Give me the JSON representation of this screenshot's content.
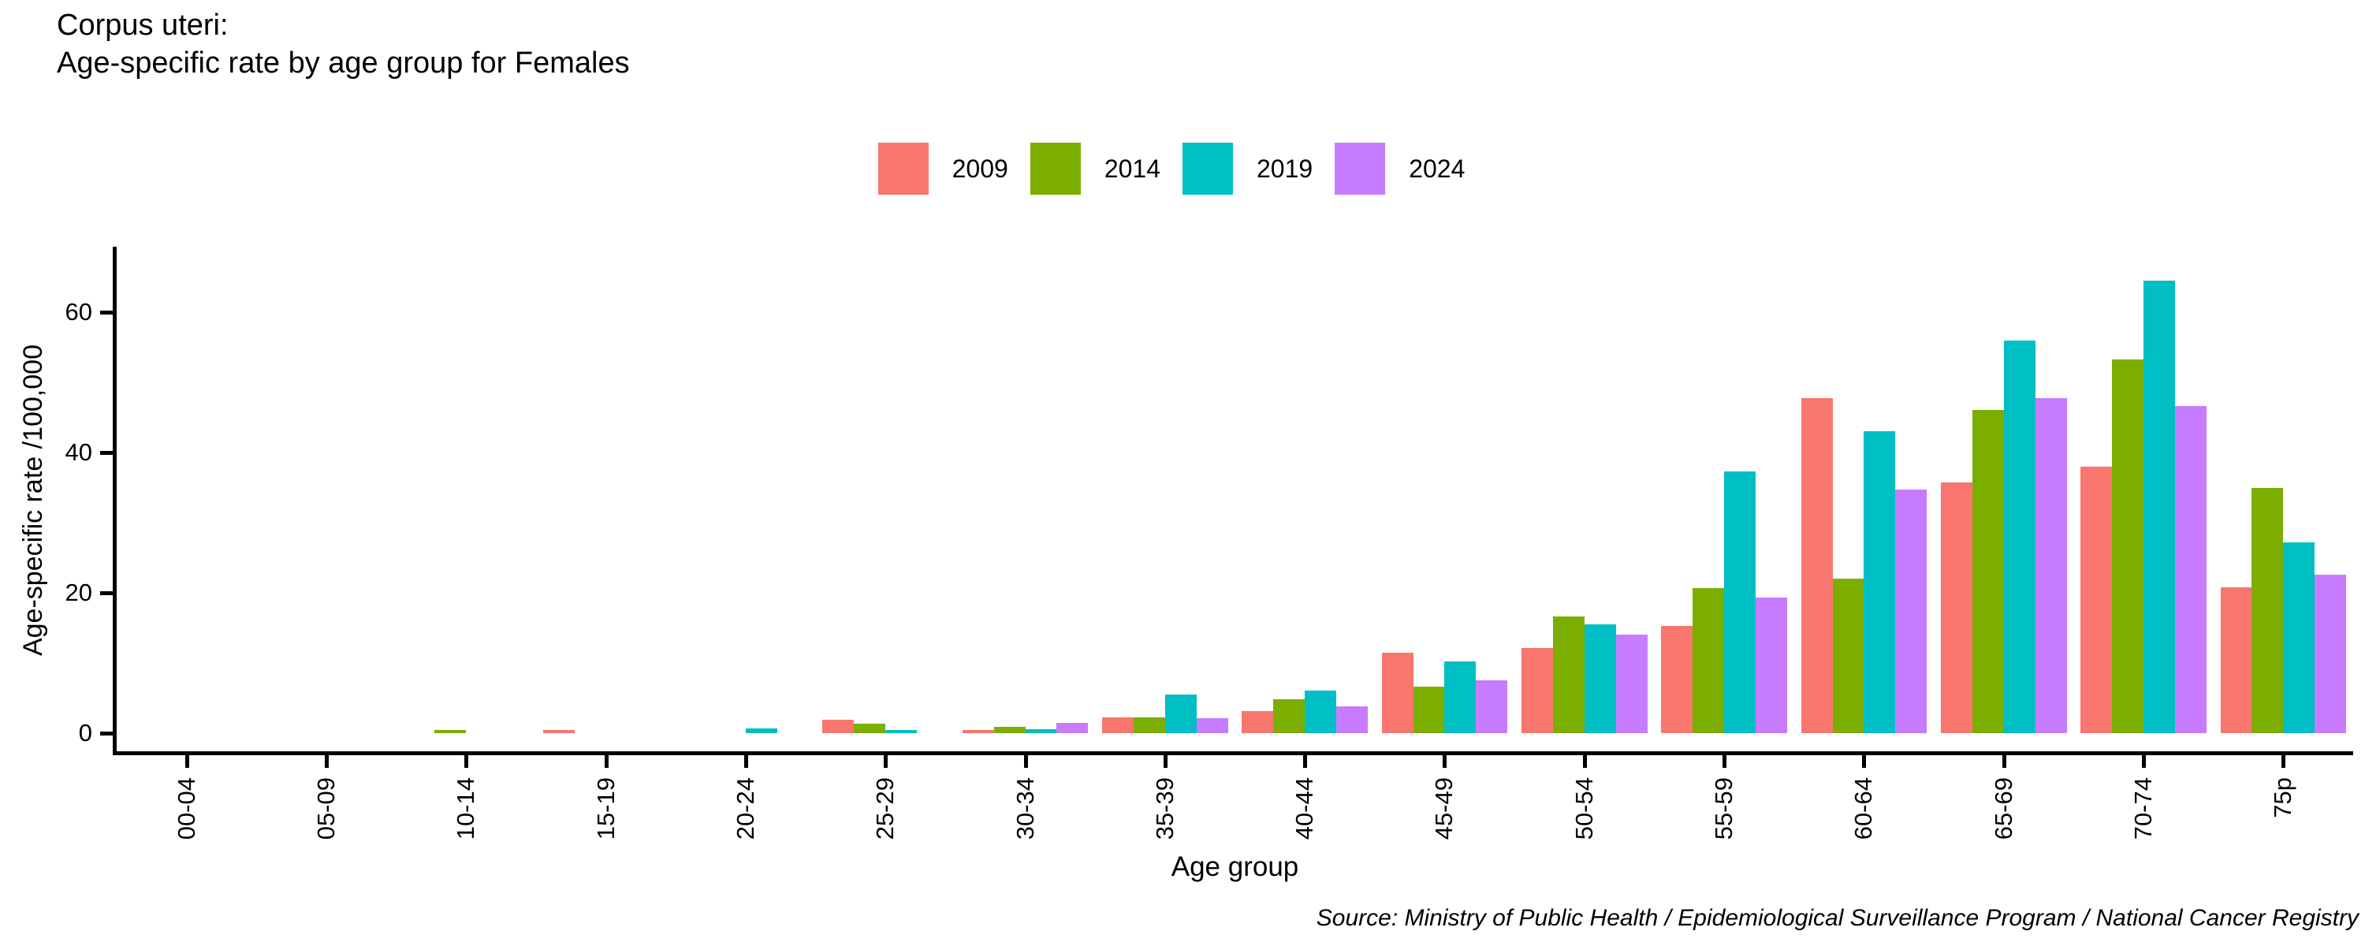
{
  "header": {
    "title_line1": "Corpus uteri:",
    "title_line2": "Age-specific rate by age group for Females"
  },
  "axes": {
    "x_title": "Age group",
    "y_title": "Age-specific rate /100,000"
  },
  "footer": {
    "source": "Source: Ministry of Public Health / Epidemiological Surveillance Program / National Cancer Registry"
  },
  "chart_data": {
    "type": "bar",
    "title": "Corpus uteri: Age-specific rate by age group for Females",
    "xlabel": "Age group",
    "ylabel": "Age-specific rate /100,000",
    "categories": [
      "00-04",
      "05-09",
      "10-14",
      "15-19",
      "20-24",
      "25-29",
      "30-34",
      "35-39",
      "40-44",
      "45-49",
      "50-54",
      "55-59",
      "60-64",
      "65-69",
      "70-74",
      "75p"
    ],
    "series": [
      {
        "name": "2009",
        "color": "#F8766D",
        "values": [
          0,
          0,
          0,
          0.5,
          0,
          1.9,
          0.5,
          2.3,
          3.1,
          11.5,
          12.1,
          15.3,
          47.8,
          35.7,
          38.0,
          20.8
        ]
      },
      {
        "name": "2014",
        "color": "#7CAE00",
        "values": [
          0,
          0,
          0.5,
          0,
          0,
          1.4,
          0.9,
          2.2,
          4.8,
          6.6,
          16.6,
          20.7,
          22.0,
          46.1,
          53.3,
          35.0
        ]
      },
      {
        "name": "2019",
        "color": "#00BFC4",
        "values": [
          0,
          0,
          0,
          0,
          0.7,
          0.5,
          0.6,
          5.5,
          6.1,
          10.2,
          15.5,
          37.3,
          43.0,
          55.9,
          64.5,
          27.2
        ]
      },
      {
        "name": "2024",
        "color": "#C77CFF",
        "values": [
          0,
          0,
          0,
          0,
          0,
          0,
          1.5,
          2.1,
          3.8,
          7.5,
          14.1,
          19.3,
          34.7,
          47.8,
          46.6,
          22.6
        ]
      }
    ],
    "yticks": [
      0,
      20,
      40,
      60
    ],
    "ylim": [
      0,
      68
    ],
    "grid": false,
    "legend_position": "top-center",
    "bar_mode": "grouped"
  }
}
